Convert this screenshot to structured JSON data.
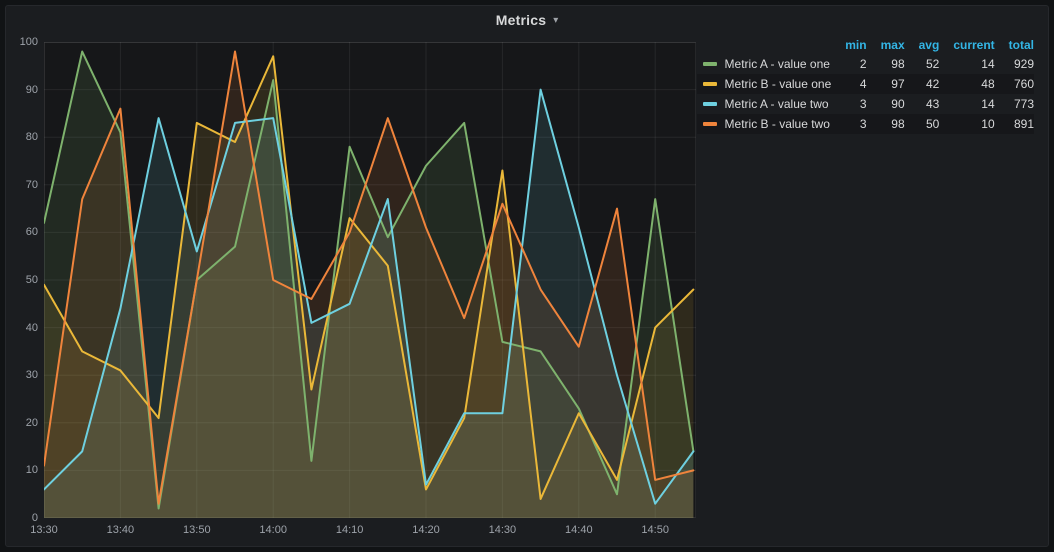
{
  "panel": {
    "title": "Metrics",
    "caret_icon": "▾"
  },
  "legend": {
    "columns": [
      "min",
      "max",
      "avg",
      "current",
      "total"
    ],
    "rows": [
      {
        "name": "Metric A - value one",
        "color": "#7EB26D",
        "min": 2,
        "max": 98,
        "avg": 52,
        "current": 14,
        "total": 929
      },
      {
        "name": "Metric B - value one",
        "color": "#EAB839",
        "min": 4,
        "max": 97,
        "avg": 42,
        "current": 48,
        "total": 760
      },
      {
        "name": "Metric A - value two",
        "color": "#6ED0E0",
        "min": 3,
        "max": 90,
        "avg": 43,
        "current": 14,
        "total": 773
      },
      {
        "name": "Metric B - value two",
        "color": "#EF843C",
        "min": 3,
        "max": 98,
        "avg": 50,
        "current": 10,
        "total": 891
      }
    ]
  },
  "chart_data": {
    "type": "line",
    "title": "Metrics",
    "x": [
      "13:30",
      "13:35",
      "13:40",
      "13:45",
      "13:50",
      "13:55",
      "14:00",
      "14:05",
      "14:10",
      "14:15",
      "14:20",
      "14:25",
      "14:30",
      "14:35",
      "14:40",
      "14:45",
      "14:50",
      "14:55"
    ],
    "x_tick_labels": [
      "13:30",
      "13:40",
      "13:50",
      "14:00",
      "14:10",
      "14:20",
      "14:30",
      "14:40",
      "14:50"
    ],
    "y_ticks": [
      0,
      10,
      20,
      30,
      40,
      50,
      60,
      70,
      80,
      90,
      100
    ],
    "ylim": [
      0,
      100
    ],
    "grid": true,
    "fill_opacity": 0.12,
    "legend_position": "right-table",
    "series": [
      {
        "name": "Metric A - value one",
        "color": "#7EB26D",
        "values": [
          62,
          98,
          81,
          2,
          50,
          57,
          92,
          12,
          78,
          59,
          74,
          83,
          37,
          35,
          23,
          5,
          67,
          14
        ]
      },
      {
        "name": "Metric B - value one",
        "color": "#EAB839",
        "values": [
          49,
          35,
          31,
          21,
          83,
          79,
          97,
          27,
          63,
          53,
          6,
          21,
          73,
          4,
          22,
          8,
          40,
          48
        ]
      },
      {
        "name": "Metric A - value two",
        "color": "#6ED0E0",
        "values": [
          6,
          14,
          44,
          84,
          56,
          83,
          84,
          41,
          45,
          67,
          7,
          22,
          22,
          90,
          61,
          30,
          3,
          14
        ]
      },
      {
        "name": "Metric B - value two",
        "color": "#EF843C",
        "values": [
          11,
          67,
          86,
          3,
          50,
          98,
          50,
          46,
          60,
          84,
          61,
          42,
          66,
          48,
          36,
          65,
          8,
          10
        ]
      }
    ]
  },
  "colors": {
    "page_bg": "#111315",
    "panel_bg": "#1b1d20",
    "plot_bg": "#161719",
    "grid": "rgba(255,255,255,0.07)",
    "axis_text": "#9ea3aa",
    "legend_header": "#33b5e5",
    "text": "#d8d9da"
  }
}
